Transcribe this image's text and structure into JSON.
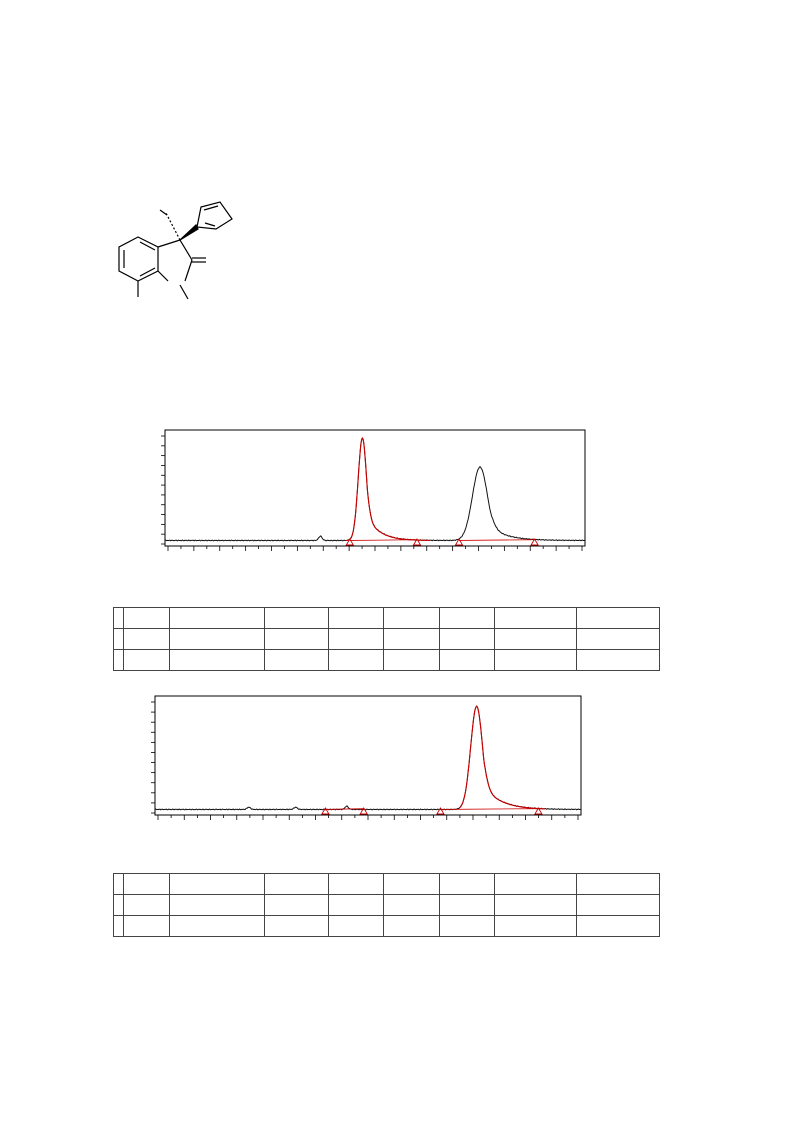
{
  "structure": {
    "name": "chiral 3-(furan-2-yl)-3-methyl oxindole derivative",
    "atoms_shown": false
  },
  "chart_data": [
    {
      "type": "line",
      "title": "",
      "xlabel": "",
      "ylabel": "",
      "x_range": [
        0,
        1
      ],
      "y_range": [
        0,
        1
      ],
      "grid": false,
      "colors": {
        "trace": "#111111",
        "integration": "#cc0000"
      },
      "peaks": [
        {
          "x": 0.47,
          "height": 0.95,
          "width": 0.01,
          "tail": 0.03,
          "integrated": true
        },
        {
          "x": 0.75,
          "height": 0.68,
          "width": 0.018,
          "tail": 0.04,
          "integrated": false
        }
      ],
      "minor_peaks": [
        {
          "x": 0.37,
          "height": 0.04
        }
      ],
      "markers_x": [
        0.44,
        0.6,
        0.7,
        0.88
      ]
    },
    {
      "type": "line",
      "title": "",
      "xlabel": "",
      "ylabel": "",
      "x_range": [
        0,
        1
      ],
      "y_range": [
        0,
        1
      ],
      "grid": false,
      "colors": {
        "trace": "#111111",
        "integration": "#cc0000"
      },
      "peaks": [
        {
          "x": 0.755,
          "height": 0.93,
          "width": 0.014,
          "tail": 0.04,
          "integrated": true
        }
      ],
      "minor_peaks": [
        {
          "x": 0.22,
          "height": 0.02
        },
        {
          "x": 0.33,
          "height": 0.02
        },
        {
          "x": 0.45,
          "height": 0.03
        }
      ],
      "markers_x": [
        0.4,
        0.49,
        0.67,
        0.9
      ]
    }
  ],
  "tables": [
    {
      "rows": [
        [
          "",
          "",
          "",
          "",
          "",
          "",
          "",
          "",
          ""
        ],
        [
          "",
          "",
          "",
          "",
          "",
          "",
          "",
          "",
          ""
        ],
        [
          "",
          "",
          "",
          "",
          "",
          "",
          "",
          "",
          ""
        ]
      ]
    },
    {
      "rows": [
        [
          "",
          "",
          "",
          "",
          "",
          "",
          "",
          "",
          ""
        ],
        [
          "",
          "",
          "",
          "",
          "",
          "",
          "",
          "",
          ""
        ],
        [
          "",
          "",
          "",
          "",
          "",
          "",
          "",
          "",
          ""
        ]
      ]
    }
  ]
}
